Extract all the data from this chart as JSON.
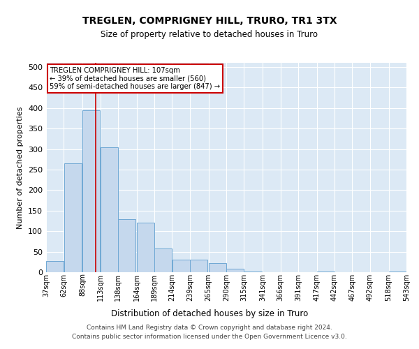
{
  "title": "TREGLEN, COMPRIGNEY HILL, TRURO, TR1 3TX",
  "subtitle": "Size of property relative to detached houses in Truro",
  "xlabel": "Distribution of detached houses by size in Truro",
  "ylabel": "Number of detached properties",
  "bar_color": "#c5d8ed",
  "bar_edge_color": "#6fa8d4",
  "background_color": "#dce9f5",
  "grid_color": "#ffffff",
  "vline_x": 107,
  "vline_color": "#cc0000",
  "annotation_text": "TREGLEN COMPRIGNEY HILL: 107sqm\n← 39% of detached houses are smaller (560)\n59% of semi-detached houses are larger (847) →",
  "footnote1": "Contains HM Land Registry data © Crown copyright and database right 2024.",
  "footnote2": "Contains public sector information licensed under the Open Government Licence v3.0.",
  "bin_edges": [
    37,
    62,
    88,
    113,
    138,
    164,
    189,
    214,
    239,
    265,
    290,
    315,
    341,
    366,
    391,
    417,
    442,
    467,
    492,
    518,
    543
  ],
  "bar_heights": [
    28,
    265,
    395,
    305,
    130,
    120,
    58,
    30,
    30,
    22,
    8,
    2,
    0,
    0,
    0,
    2,
    0,
    0,
    0,
    2
  ],
  "ylim": [
    0,
    510
  ],
  "yticks": [
    0,
    50,
    100,
    150,
    200,
    250,
    300,
    350,
    400,
    450,
    500
  ]
}
